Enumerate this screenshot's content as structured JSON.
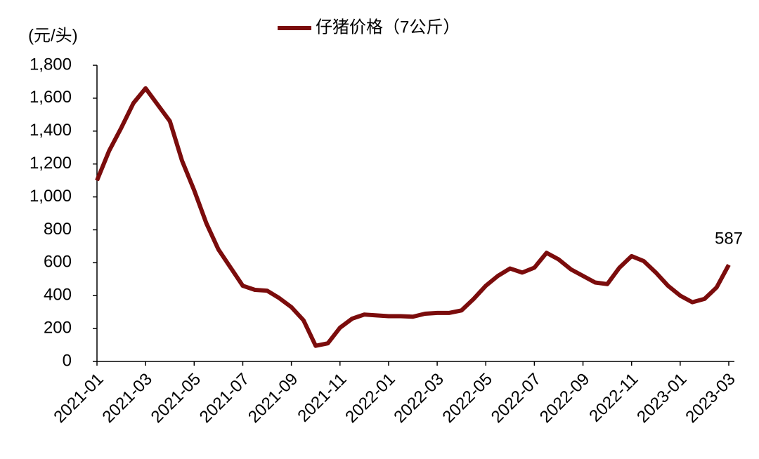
{
  "chart_data": {
    "type": "line",
    "y_label": "(元/头)",
    "categories": [
      "2021-01",
      null,
      null,
      null,
      "2021-03",
      null,
      null,
      null,
      "2021-05",
      null,
      null,
      null,
      "2021-07",
      null,
      null,
      null,
      "2021-09",
      null,
      null,
      null,
      "2021-11",
      null,
      null,
      null,
      "2022-01",
      null,
      null,
      null,
      "2022-03",
      null,
      null,
      null,
      "2022-05",
      null,
      null,
      null,
      "2022-07",
      null,
      null,
      null,
      "2022-09",
      null,
      null,
      null,
      "2022-11",
      null,
      null,
      null,
      "2023-01",
      null,
      null,
      null,
      "2023-03"
    ],
    "series": [
      {
        "name": "仔猪价格（7公斤）",
        "color": "#7b0c0c",
        "values": [
          1100,
          1280,
          1420,
          1570,
          1660,
          1560,
          1460,
          1220,
          1040,
          840,
          680,
          570,
          460,
          435,
          430,
          385,
          330,
          250,
          95,
          110,
          205,
          260,
          285,
          280,
          275,
          275,
          272,
          290,
          295,
          295,
          310,
          380,
          460,
          520,
          565,
          540,
          570,
          660,
          620,
          560,
          520,
          480,
          470,
          570,
          640,
          610,
          540,
          460,
          400,
          360,
          380,
          450,
          587
        ]
      }
    ],
    "ylim": [
      0,
      1800
    ],
    "yticks": [
      0,
      200,
      400,
      600,
      800,
      {
        "value": 1000,
        "label": "1,000"
      },
      {
        "value": 1200,
        "label": "1,200"
      },
      {
        "value": 1400,
        "label": "1,400"
      },
      {
        "value": 1600,
        "label": "1,600"
      },
      {
        "value": 1800,
        "label": "1,800"
      }
    ],
    "grid": false,
    "legend": "top"
  }
}
